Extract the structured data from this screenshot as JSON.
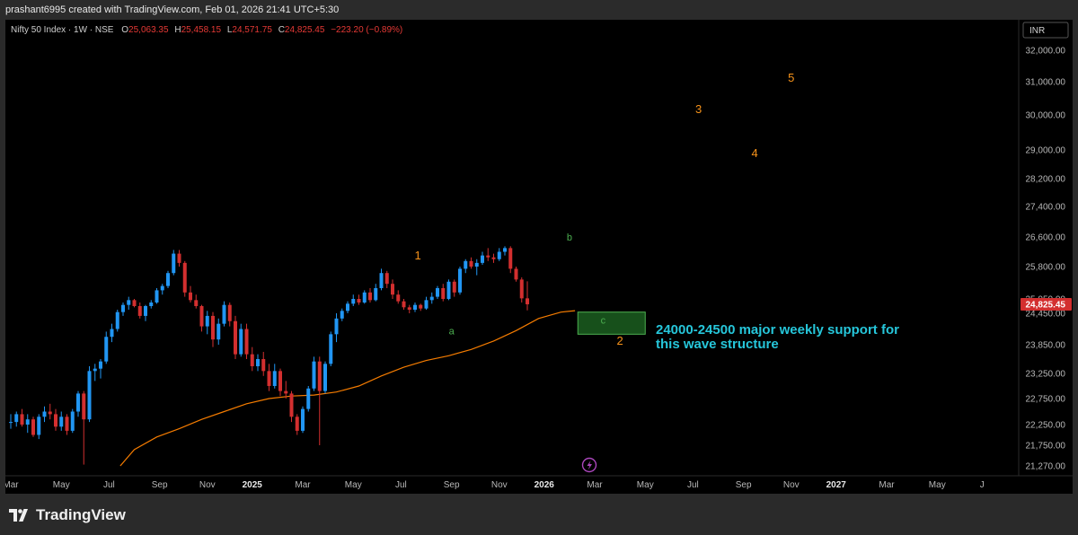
{
  "header": {
    "caption": "prashant6995 created with TradingView.com, Feb 01, 2026 21:41 UTC+5:30"
  },
  "legend": {
    "symbol": "Nifty 50 Index · 1W · NSE",
    "o_label": "O",
    "o_value": "25,063.35",
    "h_label": "H",
    "h_value": "25,458.15",
    "l_label": "L",
    "l_value": "24,571.75",
    "c_label": "C",
    "c_value": "24,825.45",
    "change": "−223.20 (−0.89%)"
  },
  "currency": "INR",
  "last_price_label": "24,825.45",
  "footer": {
    "logo_text": "TradingView"
  },
  "colors": {
    "up": "#2196f3",
    "down": "#d32f2f",
    "ma": "#f57c00",
    "wave": "#f7931a",
    "corrective": "#4caf50",
    "support_text": "#26c6da",
    "zone_fill": "#1b5e20",
    "zone_border": "#4caf50"
  },
  "chart_data": {
    "type": "candlestick",
    "title": "",
    "series_name": "Nifty 50 Index",
    "interval": "1W",
    "ylim": [
      21000,
      32600
    ],
    "y_ticks": [
      21270,
      21750,
      22250,
      22750,
      23250,
      23850,
      24450,
      25050,
      25800,
      26600,
      27400,
      28200,
      29000,
      30000,
      31000,
      32000
    ],
    "y_tick_labels": [
      "21,270.00",
      "21,750.00",
      "22,250.00",
      "22,750.00",
      "23,250.00",
      "23,850.00",
      "24,450.00",
      "25,050.00",
      "25,800.00",
      "26,600.00",
      "27,400.00",
      "28,200.00",
      "29,000.00",
      "30,000.00",
      "31,000.00",
      "32,000.00"
    ],
    "x_labels": [
      "Mar",
      "May",
      "Jul",
      "Sep",
      "Nov",
      "2025",
      "Mar",
      "May",
      "Jul",
      "Sep",
      "Nov",
      "2026",
      "Mar",
      "May",
      "Jul",
      "Sep",
      "Nov",
      "2027",
      "Mar",
      "May",
      "J"
    ],
    "x_label_weeks": [
      0,
      9,
      17.5,
      26.5,
      35,
      43,
      52,
      61,
      69.5,
      78.5,
      87,
      95,
      104,
      113,
      121.5,
      130.5,
      139,
      147,
      156,
      165,
      173
    ],
    "candles": [
      [
        22300,
        22450,
        22150,
        22300
      ],
      [
        22300,
        22500,
        22200,
        22450
      ],
      [
        22450,
        22550,
        22200,
        22250
      ],
      [
        22250,
        22450,
        22050,
        22350
      ],
      [
        22350,
        22400,
        21950,
        22000
      ],
      [
        22000,
        22450,
        21900,
        22400
      ],
      [
        22400,
        22600,
        22300,
        22500
      ],
      [
        22500,
        22650,
        22350,
        22450
      ],
      [
        22450,
        22550,
        22100,
        22200
      ],
      [
        22200,
        22500,
        22100,
        22400
      ],
      [
        22400,
        22450,
        22000,
        22100
      ],
      [
        22100,
        22550,
        22050,
        22500
      ],
      [
        22500,
        22900,
        22400,
        22850
      ],
      [
        22850,
        22900,
        21300,
        22350
      ],
      [
        22350,
        23400,
        22300,
        23300
      ],
      [
        23300,
        23450,
        23100,
        23350
      ],
      [
        23350,
        23550,
        23150,
        23500
      ],
      [
        23500,
        24100,
        23450,
        24000
      ],
      [
        24000,
        24250,
        23900,
        24150
      ],
      [
        24150,
        24600,
        24100,
        24500
      ],
      [
        24500,
        24900,
        24400,
        24800
      ],
      [
        24800,
        25100,
        24600,
        25000
      ],
      [
        25000,
        25050,
        24700,
        24750
      ],
      [
        24750,
        24900,
        24350,
        24400
      ],
      [
        24400,
        24800,
        24300,
        24750
      ],
      [
        24750,
        25000,
        24650,
        24900
      ],
      [
        24900,
        25300,
        24850,
        25250
      ],
      [
        25250,
        25400,
        25150,
        25350
      ],
      [
        25350,
        25700,
        25300,
        25650
      ],
      [
        25650,
        26250,
        25600,
        26150
      ],
      [
        26150,
        26250,
        25800,
        25900
      ],
      [
        25900,
        25950,
        25100,
        25200
      ],
      [
        25200,
        25350,
        24900,
        25000
      ],
      [
        25000,
        25150,
        24650,
        24750
      ],
      [
        24750,
        24800,
        24100,
        24200
      ],
      [
        24200,
        24550,
        24050,
        24400
      ],
      [
        24400,
        24500,
        23800,
        23950
      ],
      [
        23950,
        24350,
        23850,
        24250
      ],
      [
        24250,
        24950,
        24200,
        24800
      ],
      [
        24800,
        24900,
        24200,
        24300
      ],
      [
        24300,
        24400,
        23550,
        23650
      ],
      [
        23650,
        24250,
        23600,
        24150
      ],
      [
        24150,
        24250,
        23550,
        23650
      ],
      [
        23650,
        23800,
        23300,
        23400
      ],
      [
        23400,
        23650,
        23300,
        23550
      ],
      [
        23550,
        23700,
        23200,
        23300
      ],
      [
        23300,
        23450,
        22900,
        23000
      ],
      [
        23000,
        23450,
        22950,
        23300
      ],
      [
        23300,
        23350,
        22800,
        22900
      ],
      [
        22900,
        23100,
        22750,
        22850
      ],
      [
        22850,
        22900,
        22300,
        22400
      ],
      [
        22400,
        22450,
        22000,
        22100
      ],
      [
        22100,
        22600,
        22050,
        22550
      ],
      [
        22550,
        23000,
        22500,
        22950
      ],
      [
        22950,
        23600,
        22900,
        23500
      ],
      [
        23500,
        23600,
        21750,
        22900
      ],
      [
        22900,
        23500,
        22850,
        23450
      ],
      [
        23450,
        24100,
        23400,
        24050
      ],
      [
        24050,
        24450,
        23900,
        24350
      ],
      [
        24350,
        24650,
        24300,
        24550
      ],
      [
        24550,
        24950,
        24450,
        24850
      ],
      [
        24850,
        25150,
        24750,
        25050
      ],
      [
        25050,
        25150,
        24800,
        24900
      ],
      [
        24900,
        25250,
        24850,
        25200
      ],
      [
        25200,
        25300,
        24900,
        25000
      ],
      [
        25000,
        25400,
        24950,
        25300
      ],
      [
        25300,
        25750,
        25250,
        25650
      ],
      [
        25650,
        25700,
        25300,
        25400
      ],
      [
        25400,
        25500,
        25050,
        25150
      ],
      [
        25150,
        25250,
        24850,
        24950
      ],
      [
        24950,
        25050,
        24600,
        24700
      ],
      [
        24700,
        24800,
        24450,
        24600
      ],
      [
        24600,
        24900,
        24500,
        24800
      ],
      [
        24800,
        24850,
        24550,
        24650
      ],
      [
        24650,
        25100,
        24600,
        25000
      ],
      [
        25000,
        25200,
        24850,
        25100
      ],
      [
        25100,
        25350,
        25050,
        25300
      ],
      [
        25300,
        25400,
        24950,
        25050
      ],
      [
        25050,
        25500,
        25000,
        25450
      ],
      [
        25450,
        25500,
        25100,
        25200
      ],
      [
        25200,
        25800,
        25150,
        25750
      ],
      [
        25750,
        26000,
        25650,
        25950
      ],
      [
        25950,
        26050,
        25750,
        25800
      ],
      [
        25800,
        26000,
        25600,
        25900
      ],
      [
        25900,
        26200,
        25850,
        26100
      ],
      [
        26100,
        26300,
        25950,
        26050
      ],
      [
        26050,
        26150,
        25900,
        26000
      ],
      [
        26000,
        26300,
        25950,
        26200
      ],
      [
        26200,
        26350,
        26100,
        26300
      ],
      [
        26300,
        26350,
        25650,
        25750
      ],
      [
        25750,
        25800,
        25450,
        25500
      ],
      [
        25500,
        25550,
        24900,
        25063.35
      ],
      [
        25063.35,
        25458.15,
        24571.75,
        24825.45
      ]
    ],
    "ma_line": [
      [
        19.5,
        21270
      ],
      [
        22,
        21650
      ],
      [
        26,
        21950
      ],
      [
        30,
        22150
      ],
      [
        34,
        22350
      ],
      [
        38,
        22500
      ],
      [
        42,
        22650
      ],
      [
        46,
        22750
      ],
      [
        50,
        22800
      ],
      [
        54,
        22820
      ],
      [
        58,
        22880
      ],
      [
        62,
        23000
      ],
      [
        66,
        23200
      ],
      [
        70,
        23380
      ],
      [
        74,
        23520
      ],
      [
        78,
        23620
      ],
      [
        82,
        23750
      ],
      [
        86,
        23920
      ],
      [
        90,
        24120
      ],
      [
        94,
        24350
      ],
      [
        98,
        24500
      ],
      [
        100.5,
        24560
      ]
    ],
    "support_zone": {
      "x0": 101,
      "x1": 113,
      "y0": 24050,
      "y1": 24500
    },
    "annotations": [
      {
        "text": "1",
        "x": 72.5,
        "y": 26000,
        "kind": "wave"
      },
      {
        "text": "a",
        "x": 78.5,
        "y": 24050,
        "kind": "corrective"
      },
      {
        "text": "b",
        "x": 99.5,
        "y": 26500,
        "kind": "corrective"
      },
      {
        "text": "c",
        "x": 105.5,
        "y": 24250,
        "kind": "corrective"
      },
      {
        "text": "2",
        "x": 108.5,
        "y": 23850,
        "kind": "wave"
      },
      {
        "text": "3",
        "x": 122.5,
        "y": 30050,
        "kind": "wave"
      },
      {
        "text": "4",
        "x": 132.5,
        "y": 28800,
        "kind": "wave"
      },
      {
        "text": "5",
        "x": 139,
        "y": 31000,
        "kind": "wave"
      }
    ],
    "note_line1": "24000-24500 major weekly support for",
    "note_line2": "this wave structure"
  }
}
